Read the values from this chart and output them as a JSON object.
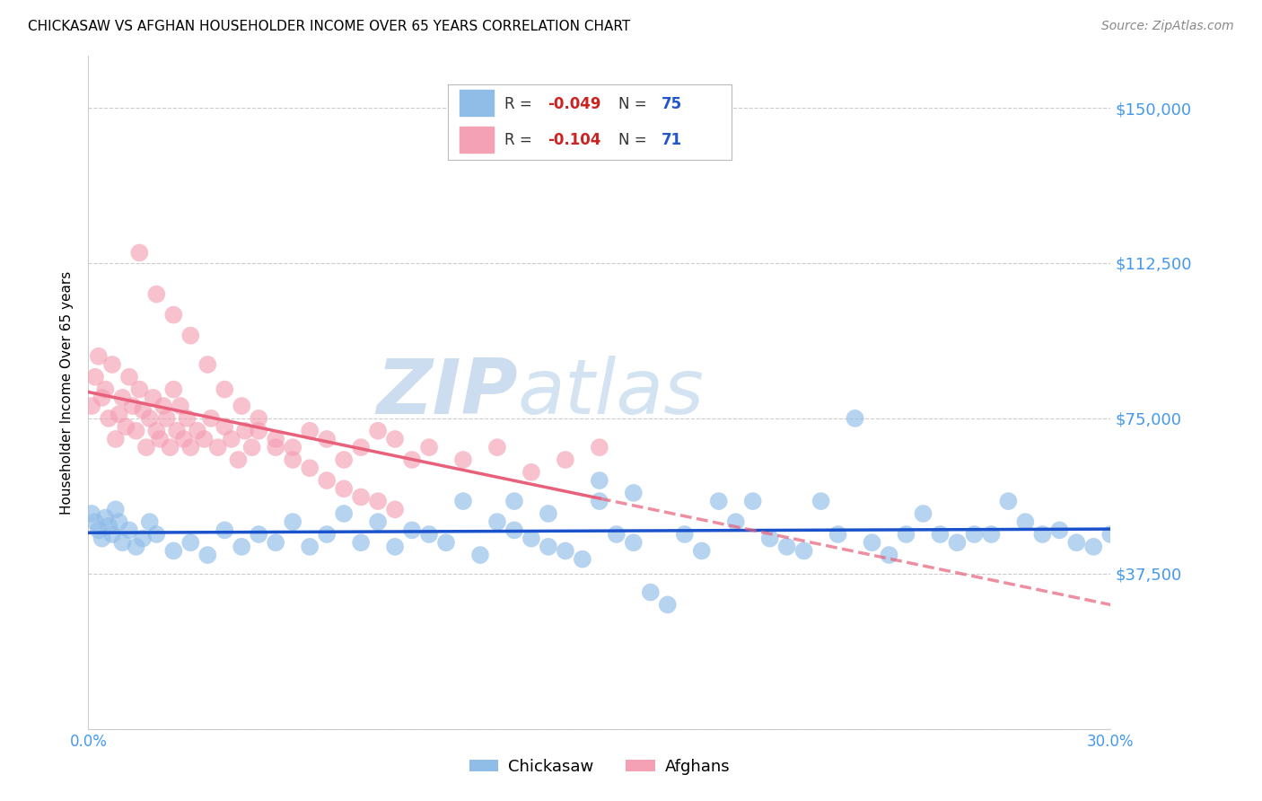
{
  "title": "CHICKASAW VS AFGHAN HOUSEHOLDER INCOME OVER 65 YEARS CORRELATION CHART",
  "source": "Source: ZipAtlas.com",
  "ylabel": "Householder Income Over 65 years",
  "xlim": [
    0.0,
    0.3
  ],
  "ylim": [
    0,
    162500
  ],
  "yticks": [
    0,
    37500,
    75000,
    112500,
    150000
  ],
  "ytick_labels": [
    "",
    "$37,500",
    "$75,000",
    "$112,500",
    "$150,000"
  ],
  "xtick_positions": [
    0.0,
    0.05,
    0.1,
    0.15,
    0.2,
    0.25,
    0.3
  ],
  "xtick_labels": [
    "0.0%",
    "",
    "",
    "",
    "",
    "",
    "30.0%"
  ],
  "color_chickasaw": "#90bce8",
  "color_afghan": "#f4a0b5",
  "color_line_chickasaw": "#1a52cc",
  "color_line_afghan": "#e8607a",
  "watermark_zip": "ZIP",
  "watermark_atlas": "atlas",
  "watermark_color": "#ccddf0",
  "chickasaw_x": [
    0.001,
    0.002,
    0.003,
    0.004,
    0.005,
    0.006,
    0.007,
    0.008,
    0.009,
    0.01,
    0.012,
    0.014,
    0.016,
    0.018,
    0.02,
    0.025,
    0.03,
    0.035,
    0.04,
    0.045,
    0.05,
    0.055,
    0.06,
    0.065,
    0.07,
    0.075,
    0.08,
    0.085,
    0.09,
    0.095,
    0.1,
    0.105,
    0.11,
    0.115,
    0.12,
    0.125,
    0.13,
    0.135,
    0.14,
    0.145,
    0.15,
    0.155,
    0.16,
    0.165,
    0.17,
    0.175,
    0.18,
    0.185,
    0.19,
    0.195,
    0.2,
    0.205,
    0.21,
    0.215,
    0.22,
    0.225,
    0.23,
    0.235,
    0.24,
    0.245,
    0.25,
    0.255,
    0.26,
    0.265,
    0.27,
    0.275,
    0.28,
    0.285,
    0.29,
    0.295,
    0.3,
    0.15,
    0.16,
    0.125,
    0.135
  ],
  "chickasaw_y": [
    52000,
    50000,
    48000,
    46000,
    51000,
    49000,
    47000,
    53000,
    50000,
    45000,
    48000,
    44000,
    46000,
    50000,
    47000,
    43000,
    45000,
    42000,
    48000,
    44000,
    47000,
    45000,
    50000,
    44000,
    47000,
    52000,
    45000,
    50000,
    44000,
    48000,
    47000,
    45000,
    55000,
    42000,
    50000,
    48000,
    46000,
    44000,
    43000,
    41000,
    55000,
    47000,
    45000,
    33000,
    30000,
    47000,
    43000,
    55000,
    50000,
    55000,
    46000,
    44000,
    43000,
    55000,
    47000,
    75000,
    45000,
    42000,
    47000,
    52000,
    47000,
    45000,
    47000,
    47000,
    55000,
    50000,
    47000,
    48000,
    45000,
    44000,
    47000,
    60000,
    57000,
    55000,
    52000
  ],
  "afghan_x": [
    0.001,
    0.002,
    0.003,
    0.004,
    0.005,
    0.006,
    0.007,
    0.008,
    0.009,
    0.01,
    0.011,
    0.012,
    0.013,
    0.014,
    0.015,
    0.016,
    0.017,
    0.018,
    0.019,
    0.02,
    0.021,
    0.022,
    0.023,
    0.024,
    0.025,
    0.026,
    0.027,
    0.028,
    0.029,
    0.03,
    0.032,
    0.034,
    0.036,
    0.038,
    0.04,
    0.042,
    0.044,
    0.046,
    0.048,
    0.05,
    0.055,
    0.06,
    0.065,
    0.07,
    0.075,
    0.08,
    0.085,
    0.09,
    0.095,
    0.1,
    0.11,
    0.12,
    0.13,
    0.14,
    0.15,
    0.015,
    0.02,
    0.025,
    0.03,
    0.035,
    0.04,
    0.045,
    0.05,
    0.055,
    0.06,
    0.065,
    0.07,
    0.075,
    0.08,
    0.085,
    0.09
  ],
  "afghan_y": [
    78000,
    85000,
    90000,
    80000,
    82000,
    75000,
    88000,
    70000,
    76000,
    80000,
    73000,
    85000,
    78000,
    72000,
    82000,
    77000,
    68000,
    75000,
    80000,
    72000,
    70000,
    78000,
    75000,
    68000,
    82000,
    72000,
    78000,
    70000,
    75000,
    68000,
    72000,
    70000,
    75000,
    68000,
    73000,
    70000,
    65000,
    72000,
    68000,
    75000,
    70000,
    68000,
    72000,
    70000,
    65000,
    68000,
    72000,
    70000,
    65000,
    68000,
    65000,
    68000,
    62000,
    65000,
    68000,
    115000,
    105000,
    100000,
    95000,
    88000,
    82000,
    78000,
    72000,
    68000,
    65000,
    63000,
    60000,
    58000,
    56000,
    55000,
    53000
  ],
  "legend_r1": "-0.049",
  "legend_n1": "75",
  "legend_r2": "-0.104",
  "legend_n2": "71"
}
